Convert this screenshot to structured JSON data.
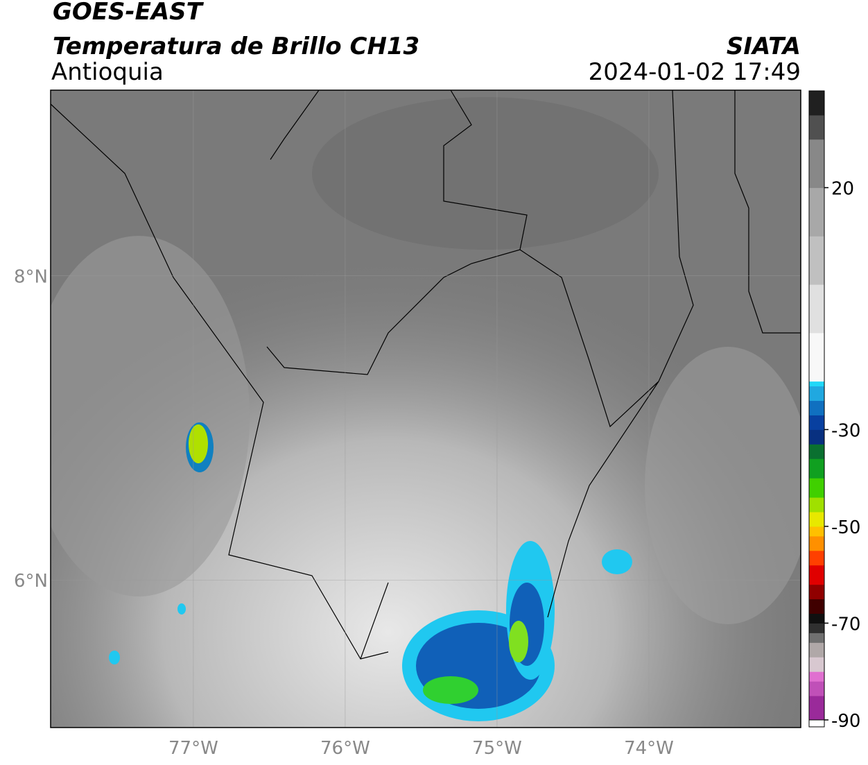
{
  "map": {
    "title": "GOES-EAST",
    "subtitle": "Temperatura de Brillo CH13",
    "region": "Antioquia",
    "source": "SIATA",
    "datetime": "2024-01-02 17:49",
    "xlim": [
      -77.94,
      -73.0
    ],
    "ylim": [
      5.03,
      9.22
    ],
    "xticks": [
      {
        "value": -77,
        "label": "77°W"
      },
      {
        "value": -76,
        "label": "76°W"
      },
      {
        "value": -75,
        "label": "75°W"
      },
      {
        "value": -74,
        "label": "74°W"
      }
    ],
    "yticks": [
      {
        "value": 8,
        "label": "8°N"
      },
      {
        "value": 6,
        "label": "6°N"
      }
    ],
    "grid": true,
    "colorbar": {
      "clim": [
        -90,
        40
      ],
      "ticks": [
        20,
        -30,
        -50,
        -70,
        -90
      ],
      "under_color": "#ffffff",
      "colormap": [
        {
          "value": -90,
          "color": "#9a2a9a"
        },
        {
          "value": -85,
          "color": "#c050b8"
        },
        {
          "value": -82,
          "color": "#e070d0"
        },
        {
          "value": -80,
          "color": "#d8c8d0"
        },
        {
          "value": -77,
          "color": "#b0a8a8"
        },
        {
          "value": -74,
          "color": "#707070"
        },
        {
          "value": -72,
          "color": "#303030"
        },
        {
          "value": -70,
          "color": "#101010"
        },
        {
          "value": -68,
          "color": "#400000"
        },
        {
          "value": -65,
          "color": "#900000"
        },
        {
          "value": -62,
          "color": "#e00000"
        },
        {
          "value": -58,
          "color": "#ff4000"
        },
        {
          "value": -55,
          "color": "#ff9000"
        },
        {
          "value": -52,
          "color": "#ffc000"
        },
        {
          "value": -50,
          "color": "#e8e800"
        },
        {
          "value": -47,
          "color": "#a0e000"
        },
        {
          "value": -44,
          "color": "#40d000"
        },
        {
          "value": -40,
          "color": "#10a020"
        },
        {
          "value": -36,
          "color": "#0a7030"
        },
        {
          "value": -33,
          "color": "#083080"
        },
        {
          "value": -30,
          "color": "#0840a0"
        },
        {
          "value": -27,
          "color": "#1070c0"
        },
        {
          "value": -24,
          "color": "#20a8e0"
        },
        {
          "value": -21,
          "color": "#20d8f8"
        },
        {
          "value": -20,
          "color": "#f8f8f8"
        },
        {
          "value": -10,
          "color": "#e0e0e0"
        },
        {
          "value": 0,
          "color": "#c0c0c0"
        },
        {
          "value": 10,
          "color": "#a8a8a8"
        },
        {
          "value": 20,
          "color": "#888888"
        },
        {
          "value": 30,
          "color": "#505050"
        },
        {
          "value": 35,
          "color": "#202020"
        }
      ]
    }
  }
}
